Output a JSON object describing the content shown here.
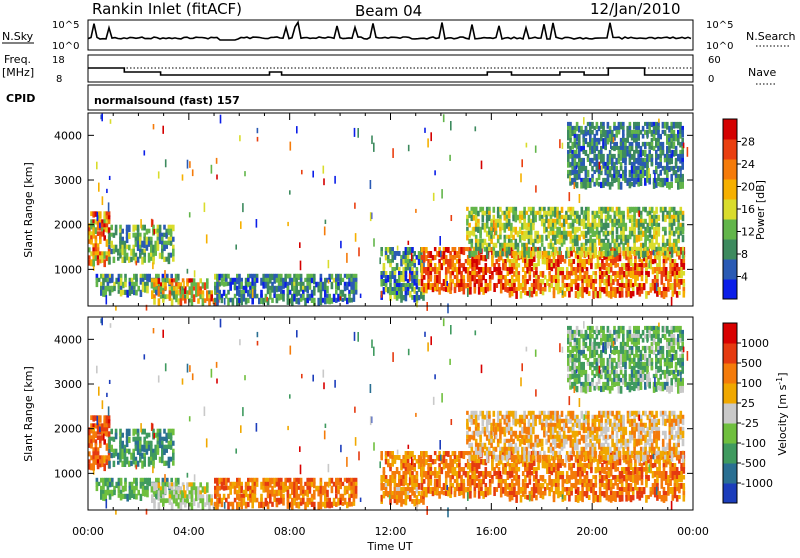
{
  "header": {
    "station": "Rankin Inlet (fitACF)",
    "beam": "Beam 04",
    "date": "12/Jan/2010"
  },
  "nsky_panel": {
    "left_label": "N.Sky",
    "left_ticks": [
      "10^5",
      "10^0"
    ],
    "right_label": "N.Search",
    "right_ticks": [
      "10^5",
      "10^0"
    ]
  },
  "freq_panel": {
    "left_label_1": "Freq.",
    "left_label_2": "[MHz]",
    "left_ticks": [
      "18",
      "8"
    ],
    "right_label": "Nave",
    "right_ticks": [
      "60",
      "0"
    ]
  },
  "cpid": {
    "label": "CPID",
    "value": "normalsound (fast) 157"
  },
  "chart_data": [
    {
      "type": "heatmap",
      "parameter": "Power",
      "xlabel": "Time UT",
      "ylabel": "Slant Range [km]",
      "xlim_hours": [
        0,
        24
      ],
      "ylim_km": [
        180,
        4500
      ],
      "x_ticks": [
        "00:00",
        "04:00",
        "08:00",
        "12:00",
        "16:00",
        "20:00",
        "00:00"
      ],
      "y_ticks": [
        1000,
        2000,
        3000,
        4000
      ],
      "colorbar": {
        "label": "Power [dB]",
        "range": [
          0,
          32
        ],
        "ticks": [
          4,
          8,
          12,
          16,
          20,
          24,
          28
        ],
        "colors": [
          "#0b1ee8",
          "#2a5ab4",
          "#3d8a5e",
          "#62b54a",
          "#d9dc2c",
          "#f6b000",
          "#f57b0a",
          "#ea3f10",
          "#d40000"
        ]
      },
      "regions": [
        {
          "t": [
            0.0,
            0.8
          ],
          "r": [
            1150,
            2300
          ],
          "level": [
            0.35,
            0.95
          ]
        },
        {
          "t": [
            0.8,
            3.4
          ],
          "r": [
            1200,
            2000
          ],
          "level": [
            0.15,
            0.55
          ]
        },
        {
          "t": [
            0.3,
            3.6
          ],
          "r": [
            500,
            900
          ],
          "level": [
            0.1,
            0.5
          ]
        },
        {
          "t": [
            2.5,
            5.2
          ],
          "r": [
            280,
            800
          ],
          "level": [
            0.3,
            0.95
          ]
        },
        {
          "t": [
            5.0,
            10.6
          ],
          "r": [
            300,
            900
          ],
          "level": [
            0.05,
            0.45
          ]
        },
        {
          "t": [
            11.6,
            13.3
          ],
          "r": [
            400,
            1500
          ],
          "level": [
            0.05,
            0.5
          ]
        },
        {
          "t": [
            13.2,
            16.6
          ],
          "r": [
            550,
            1500
          ],
          "level": [
            0.6,
            1.0
          ]
        },
        {
          "t": [
            16.6,
            23.6
          ],
          "r": [
            500,
            1500
          ],
          "level": [
            0.45,
            1.0
          ]
        },
        {
          "t": [
            15.0,
            23.6
          ],
          "r": [
            1400,
            2400
          ],
          "level": [
            0.25,
            0.6
          ]
        },
        {
          "t": [
            19.0,
            23.6
          ],
          "r": [
            2900,
            4300
          ],
          "level": [
            0.1,
            0.4
          ]
        }
      ]
    },
    {
      "type": "heatmap",
      "parameter": "Velocity",
      "xlabel": "Time UT",
      "ylabel": "Slant Range [km]",
      "xlim_hours": [
        0,
        24
      ],
      "ylim_km": [
        180,
        4500
      ],
      "x_ticks": [
        "00:00",
        "04:00",
        "08:00",
        "12:00",
        "16:00",
        "20:00",
        "00:00"
      ],
      "y_ticks": [
        1000,
        2000,
        3000,
        4000
      ],
      "colorbar": {
        "label": "Velocity [m s^-1]",
        "tick_labels": [
          "1000",
          "500",
          "100",
          "25",
          "-25",
          "-100",
          "-500",
          "-1000"
        ],
        "colors": [
          "#1c3dbb",
          "#2a6f92",
          "#3f9a5f",
          "#6fbf3e",
          "#c9c9c9",
          "#f0a800",
          "#f47b0a",
          "#e53a10",
          "#d80000"
        ]
      },
      "regions": [
        {
          "t": [
            0.0,
            0.8
          ],
          "r": [
            1150,
            2300
          ],
          "level": [
            0.65,
            0.9
          ]
        },
        {
          "t": [
            0.8,
            3.4
          ],
          "r": [
            1200,
            2000
          ],
          "level": [
            0.15,
            0.4
          ]
        },
        {
          "t": [
            0.3,
            3.6
          ],
          "r": [
            500,
            900
          ],
          "level": [
            0.2,
            0.45
          ]
        },
        {
          "t": [
            2.5,
            5.2
          ],
          "r": [
            280,
            800
          ],
          "level": [
            0.35,
            0.6
          ]
        },
        {
          "t": [
            5.0,
            10.6
          ],
          "r": [
            300,
            900
          ],
          "level": [
            0.6,
            0.85
          ]
        },
        {
          "t": [
            11.6,
            13.3
          ],
          "r": [
            400,
            1500
          ],
          "level": [
            0.55,
            0.8
          ]
        },
        {
          "t": [
            13.2,
            16.6
          ],
          "r": [
            550,
            1500
          ],
          "level": [
            0.6,
            0.85
          ]
        },
        {
          "t": [
            16.6,
            23.6
          ],
          "r": [
            500,
            1500
          ],
          "level": [
            0.6,
            0.85
          ]
        },
        {
          "t": [
            15.0,
            23.6
          ],
          "r": [
            1400,
            2400
          ],
          "level": [
            0.45,
            0.75
          ]
        },
        {
          "t": [
            19.0,
            23.6
          ],
          "r": [
            2900,
            4300
          ],
          "level": [
            0.2,
            0.5
          ]
        }
      ]
    }
  ]
}
